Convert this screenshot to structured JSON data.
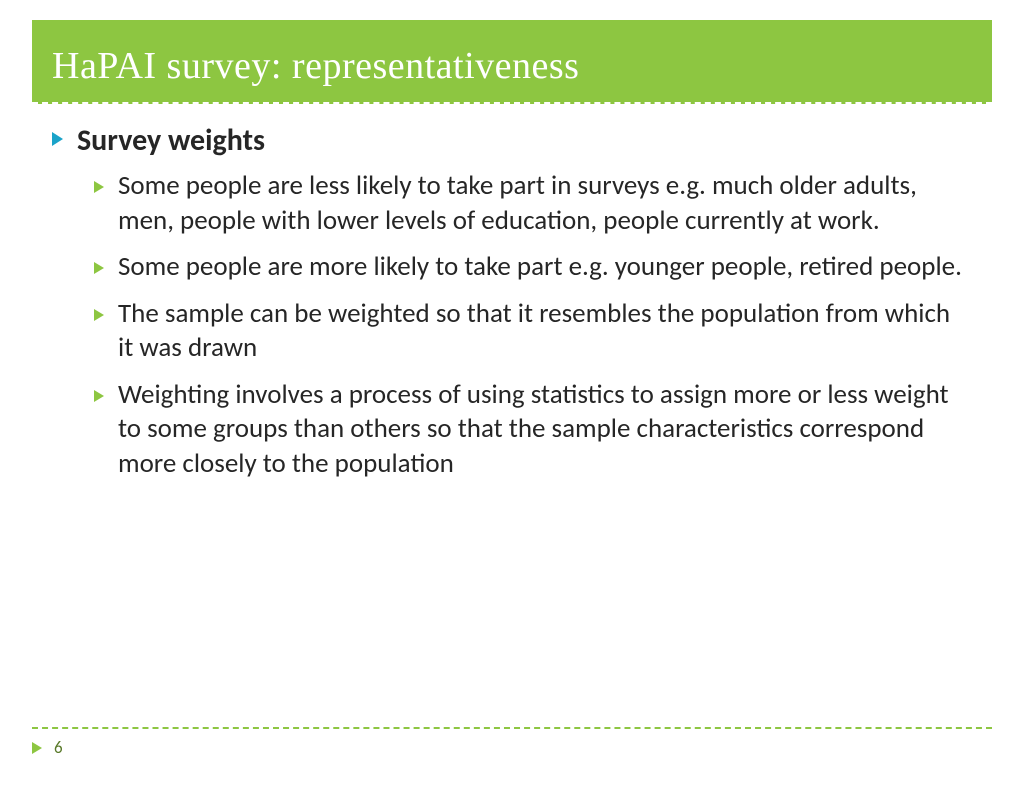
{
  "colors": {
    "header_bg": "#8dc641",
    "header_text": "#ffffff",
    "body_text": "#262626",
    "bullet_primary": "#1aa3c9",
    "bullet_secondary": "#8dc641",
    "footer_dash": "#8dc641",
    "page_num": "#5a7a2a"
  },
  "title": "HaPAI survey: representativeness",
  "heading": "Survey weights",
  "bullets": [
    "Some people are less likely to take part in surveys e.g. much older adults, men, people with lower levels of education, people currently at work.",
    "Some people are more likely to take part e.g. younger people, retired people.",
    "The sample can be weighted so that it resembles the population from which it was drawn",
    "Weighting involves a process of using statistics to assign more or less weight to some groups than others so that the sample characteristics correspond more closely to the population"
  ],
  "page_number": "6"
}
